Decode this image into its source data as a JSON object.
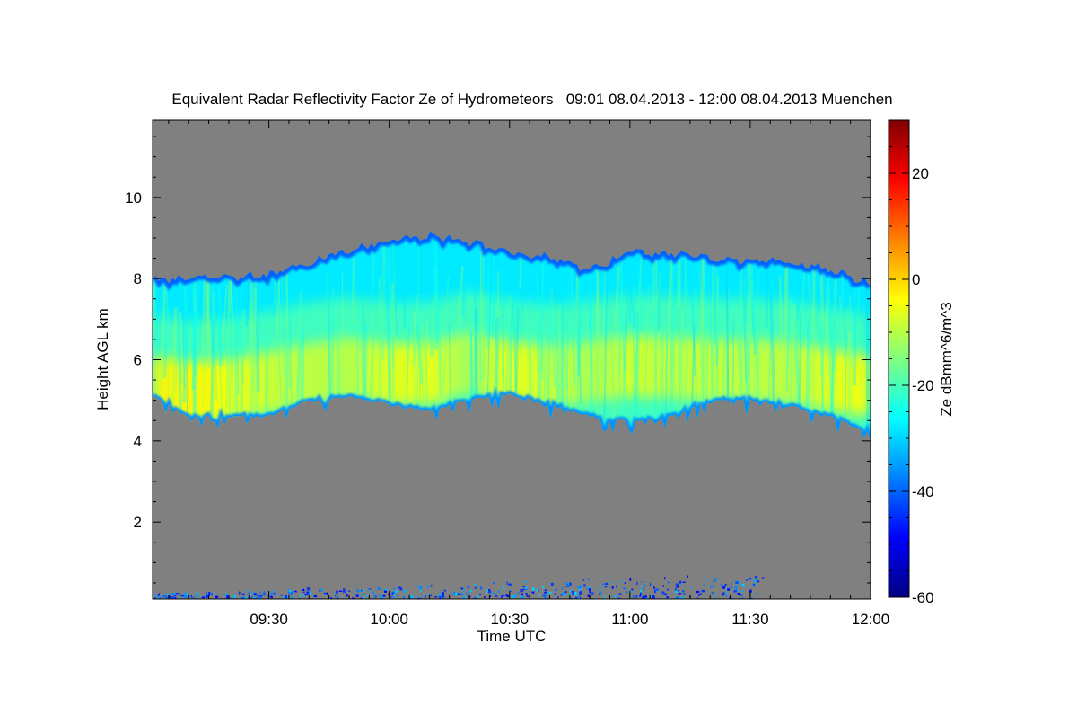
{
  "chart_data": {
    "type": "heatmap",
    "title": "Equivalent Radar Reflectivity Factor Ze of Hydrometeors   09:01 08.04.2013 - 12:00 08.04.2013 Muenchen",
    "xlabel": "Time UTC",
    "ylabel": "Height AGL km",
    "colorbar_label": "Ze dBmm^6/m^3",
    "x_range_minutes": [
      541,
      720
    ],
    "y_range_km": [
      0.1,
      11.9
    ],
    "x_ticks": [
      {
        "label": "09:30",
        "minutes": 570
      },
      {
        "label": "10:00",
        "minutes": 600
      },
      {
        "label": "10:30",
        "minutes": 630
      },
      {
        "label": "11:00",
        "minutes": 660
      },
      {
        "label": "11:30",
        "minutes": 690
      },
      {
        "label": "12:00",
        "minutes": 720
      }
    ],
    "y_ticks": [
      2,
      4,
      6,
      8,
      10
    ],
    "colorbar_ticks": [
      20,
      0,
      -20,
      -40,
      -60
    ],
    "color_range_dbz": [
      -60,
      30
    ],
    "background_color": "#808080",
    "colormap": [
      "#000080",
      "#0000ff",
      "#0080ff",
      "#00ffff",
      "#80ff80",
      "#ffff00",
      "#ff8000",
      "#ff0000",
      "#800000"
    ],
    "cloud_layer": {
      "time_minutes": [
        541,
        550,
        560,
        570,
        580,
        590,
        600,
        610,
        620,
        630,
        640,
        650,
        660,
        670,
        680,
        690,
        700,
        710,
        720
      ],
      "top_km": [
        7.95,
        8.0,
        8.05,
        8.1,
        8.4,
        8.7,
        8.9,
        9.05,
        8.9,
        8.65,
        8.55,
        8.2,
        8.65,
        8.6,
        8.5,
        8.4,
        8.4,
        8.2,
        7.9
      ],
      "base_km": [
        5.1,
        4.6,
        4.6,
        4.6,
        5.0,
        5.1,
        4.9,
        4.75,
        5.0,
        5.15,
        4.9,
        4.6,
        4.5,
        4.6,
        5.0,
        5.0,
        4.85,
        4.6,
        4.2
      ],
      "core_height_km": [
        5.5,
        5.35,
        5.4,
        5.6,
        5.8,
        5.95,
        5.8,
        5.8,
        6.1,
        5.85,
        5.75,
        5.85,
        6.0,
        5.95,
        5.9,
        5.9,
        5.85,
        5.65,
        5.5
      ],
      "core_ze_dbz": [
        -3,
        -3,
        -4,
        -8,
        -9,
        -10,
        -6,
        -5,
        -12,
        -5,
        -8,
        -11,
        -7,
        -9,
        -8,
        -9,
        -9,
        -6,
        -4
      ],
      "top_ze_dbz": -40
    },
    "surface_clutter": {
      "height_range_km": [
        0.1,
        0.8
      ],
      "time_range_minutes": [
        541,
        693
      ],
      "ze_range_dbz": [
        -50,
        -30
      ]
    }
  }
}
